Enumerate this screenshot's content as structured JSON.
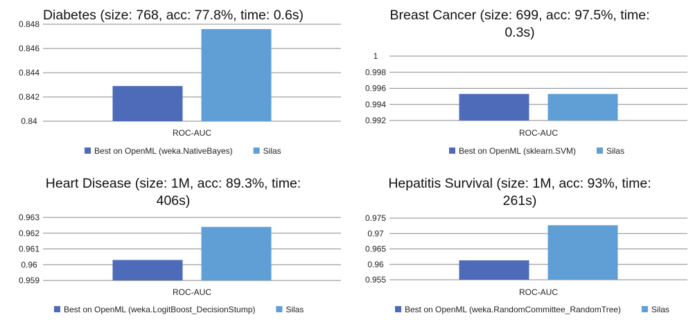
{
  "colors": {
    "best": "#4d6bb8",
    "silas": "#5f9fd6",
    "grid": "#8a8a8a"
  },
  "chart_data": [
    {
      "type": "bar",
      "title": "Diabetes (size: 768, acc: 77.8%, time: 0.6s)",
      "categories": [
        "ROC-AUC"
      ],
      "ylim": [
        0.84,
        0.848
      ],
      "yticks": [
        "0.84",
        "0.842",
        "0.844",
        "0.846",
        "0.848"
      ],
      "series": [
        {
          "name": "Best on OpenML (weka.NativeBayes)",
          "values": [
            0.8429
          ]
        },
        {
          "name": "Silas",
          "values": [
            0.8476
          ]
        }
      ],
      "legend": "bottom",
      "grid": true
    },
    {
      "type": "bar",
      "title": "Breast Cancer (size: 699, acc: 97.5%, time: 0.3s)",
      "categories": [
        "ROC-AUC"
      ],
      "ylim": [
        0.992,
        1
      ],
      "yticks": [
        "0.992",
        "0.994",
        "0.996",
        "0.998",
        "1"
      ],
      "series": [
        {
          "name": "Best on OpenML (sklearn.SVM)",
          "values": [
            0.9953
          ]
        },
        {
          "name": "Silas",
          "values": [
            0.9953
          ]
        }
      ],
      "legend": "bottom",
      "grid": true
    },
    {
      "type": "bar",
      "title": "Heart Disease (size: 1M, acc: 89.3%, time: 406s)",
      "categories": [
        "ROC-AUC"
      ],
      "ylim": [
        0.959,
        0.963
      ],
      "yticks": [
        "0.959",
        "0.96",
        "0.961",
        "0.962",
        "0.963"
      ],
      "series": [
        {
          "name": "Best on OpenML (weka.LogitBoost_DecisionStump)",
          "values": [
            0.9603
          ]
        },
        {
          "name": "Silas",
          "values": [
            0.9624
          ]
        }
      ],
      "legend": "bottom",
      "grid": true
    },
    {
      "type": "bar",
      "title": "Hepatitis Survival (size: 1M, acc: 93%, time: 261s)",
      "categories": [
        "ROC-AUC"
      ],
      "ylim": [
        0.955,
        0.975
      ],
      "yticks": [
        "0.955",
        "0.96",
        "0.965",
        "0.97",
        "0.975"
      ],
      "series": [
        {
          "name": "Best on OpenML (weka.RandomCommittee_RandomTree)",
          "values": [
            0.9613
          ]
        },
        {
          "name": "Silas",
          "values": [
            0.9727
          ]
        }
      ],
      "legend": "bottom",
      "grid": true
    }
  ]
}
